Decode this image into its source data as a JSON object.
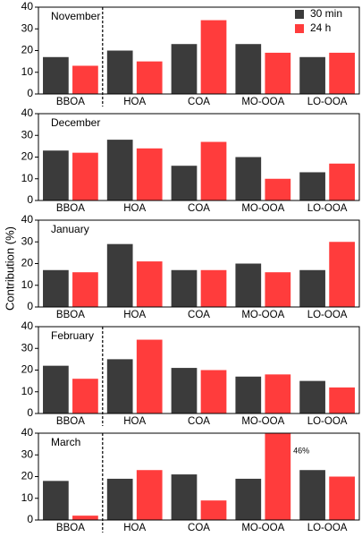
{
  "ylabel": "Contribution (%)",
  "chart_data": [
    {
      "type": "bar",
      "title": "November",
      "categories": [
        "BBOA",
        "HOA",
        "COA",
        "MO-OOA",
        "LO-OOA"
      ],
      "series": [
        {
          "name": "30 min",
          "color": "#3b3b3b",
          "values": [
            17,
            20,
            23,
            23,
            17
          ]
        },
        {
          "name": "24 h",
          "color": "#ff3c3c",
          "values": [
            13,
            15,
            34,
            19,
            19
          ]
        }
      ],
      "ylim": [
        0,
        40
      ],
      "yticks": [
        0,
        10,
        20,
        30,
        40
      ],
      "legend": "upper right",
      "dashed_divider": true
    },
    {
      "type": "bar",
      "title": "December",
      "categories": [
        "BBOA",
        "HOA",
        "COA",
        "MO-OOA",
        "LO-OOA"
      ],
      "series": [
        {
          "name": "30 min",
          "color": "#3b3b3b",
          "values": [
            23,
            28,
            16,
            20,
            13
          ]
        },
        {
          "name": "24 h",
          "color": "#ff3c3c",
          "values": [
            22,
            24,
            27,
            10,
            17
          ]
        }
      ],
      "ylim": [
        0,
        40
      ],
      "yticks": [
        0,
        10,
        20,
        30,
        40
      ],
      "dashed_divider": false
    },
    {
      "type": "bar",
      "title": "January",
      "categories": [
        "BBOA",
        "HOA",
        "COA",
        "MO-OOA",
        "LO-OOA"
      ],
      "series": [
        {
          "name": "30 min",
          "color": "#3b3b3b",
          "values": [
            17,
            29,
            17,
            20,
            17
          ]
        },
        {
          "name": "24 h",
          "color": "#ff3c3c",
          "values": [
            16,
            21,
            17,
            16,
            30
          ]
        }
      ],
      "ylim": [
        0,
        40
      ],
      "yticks": [
        0,
        10,
        20,
        30,
        40
      ],
      "dashed_divider": false
    },
    {
      "type": "bar",
      "title": "February",
      "categories": [
        "BBOA",
        "HOA",
        "COA",
        "MO-OOA",
        "LO-OOA"
      ],
      "series": [
        {
          "name": "30 min",
          "color": "#3b3b3b",
          "values": [
            22,
            25,
            21,
            17,
            15
          ]
        },
        {
          "name": "24 h",
          "color": "#ff3c3c",
          "values": [
            16,
            34,
            20,
            18,
            12
          ]
        }
      ],
      "ylim": [
        0,
        40
      ],
      "yticks": [
        0,
        10,
        20,
        30,
        40
      ],
      "dashed_divider": true
    },
    {
      "type": "bar",
      "title": "March",
      "categories": [
        "BBOA",
        "HOA",
        "COA",
        "MO-OOA",
        "LO-OOA"
      ],
      "series": [
        {
          "name": "30 min",
          "color": "#3b3b3b",
          "values": [
            18,
            19,
            21,
            19,
            23
          ]
        },
        {
          "name": "24 h",
          "color": "#ff3c3c",
          "values": [
            2,
            23,
            9,
            46,
            20
          ],
          "value_labels": [
            null,
            null,
            null,
            "46%",
            null
          ]
        }
      ],
      "ylim": [
        0,
        40
      ],
      "yticks": [
        0,
        10,
        20,
        30,
        40
      ],
      "dashed_divider": true
    }
  ]
}
